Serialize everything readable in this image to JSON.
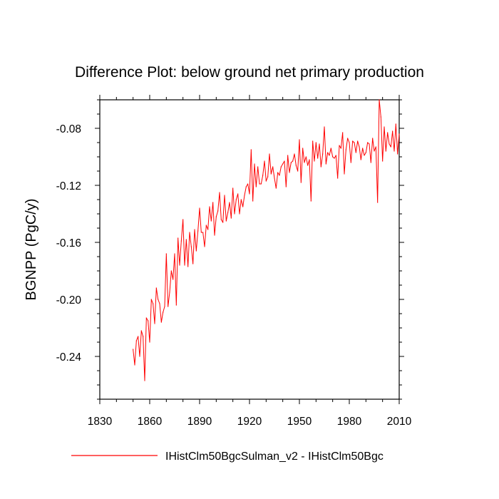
{
  "chart_data": {
    "type": "line",
    "title": "Difference Plot: below ground net primary production",
    "xlabel": "",
    "ylabel": "BGNPP  (PgC/y)",
    "xlim": [
      1830,
      2010
    ],
    "ylim": [
      -0.27,
      -0.06
    ],
    "x_ticks": [
      1830,
      1860,
      1890,
      1920,
      1950,
      1980,
      2010
    ],
    "y_ticks": [
      -0.24,
      -0.2,
      -0.16,
      -0.12,
      -0.08
    ],
    "y_tick_labels": [
      "-0.24",
      "-0.20",
      "-0.16",
      "-0.12",
      "-0.08"
    ],
    "grid": false,
    "legend_position": "bottom-center",
    "series": [
      {
        "name": "IHistClm50BgcSulman_v2 - IHistClm50Bgc",
        "color": "#ff0000",
        "x_start": 1850,
        "x_step": 1,
        "values": [
          -0.235,
          -0.246,
          -0.229,
          -0.226,
          -0.24,
          -0.222,
          -0.226,
          -0.257,
          -0.213,
          -0.215,
          -0.23,
          -0.2,
          -0.203,
          -0.217,
          -0.192,
          -0.2,
          -0.203,
          -0.216,
          -0.209,
          -0.205,
          -0.168,
          -0.205,
          -0.195,
          -0.18,
          -0.186,
          -0.168,
          -0.204,
          -0.157,
          -0.176,
          -0.159,
          -0.144,
          -0.176,
          -0.158,
          -0.177,
          -0.153,
          -0.163,
          -0.175,
          -0.151,
          -0.166,
          -0.152,
          -0.136,
          -0.153,
          -0.153,
          -0.163,
          -0.148,
          -0.151,
          -0.135,
          -0.145,
          -0.132,
          -0.155,
          -0.142,
          -0.138,
          -0.125,
          -0.144,
          -0.146,
          -0.127,
          -0.145,
          -0.139,
          -0.132,
          -0.143,
          -0.122,
          -0.14,
          -0.13,
          -0.126,
          -0.14,
          -0.13,
          -0.135,
          -0.127,
          -0.121,
          -0.119,
          -0.126,
          -0.095,
          -0.131,
          -0.105,
          -0.121,
          -0.107,
          -0.119,
          -0.119,
          -0.113,
          -0.103,
          -0.117,
          -0.114,
          -0.098,
          -0.112,
          -0.107,
          -0.115,
          -0.122,
          -0.111,
          -0.113,
          -0.107,
          -0.105,
          -0.103,
          -0.121,
          -0.099,
          -0.111,
          -0.104,
          -0.103,
          -0.098,
          -0.106,
          -0.11,
          -0.088,
          -0.118,
          -0.094,
          -0.104,
          -0.1,
          -0.106,
          -0.102,
          -0.131,
          -0.089,
          -0.103,
          -0.09,
          -0.101,
          -0.091,
          -0.107,
          -0.098,
          -0.079,
          -0.105,
          -0.097,
          -0.099,
          -0.094,
          -0.1,
          -0.101,
          -0.099,
          -0.115,
          -0.092,
          -0.094,
          -0.083,
          -0.112,
          -0.095,
          -0.087,
          -0.09,
          -0.104,
          -0.089,
          -0.09,
          -0.097,
          -0.089,
          -0.093,
          -0.102,
          -0.094,
          -0.099,
          -0.097,
          -0.09,
          -0.091,
          -0.104,
          -0.087,
          -0.096,
          -0.093,
          -0.132,
          -0.06,
          -0.072,
          -0.103,
          -0.079,
          -0.096,
          -0.083,
          -0.091,
          -0.093,
          -0.082,
          -0.096,
          -0.077,
          -0.098,
          -0.084
        ]
      }
    ]
  }
}
